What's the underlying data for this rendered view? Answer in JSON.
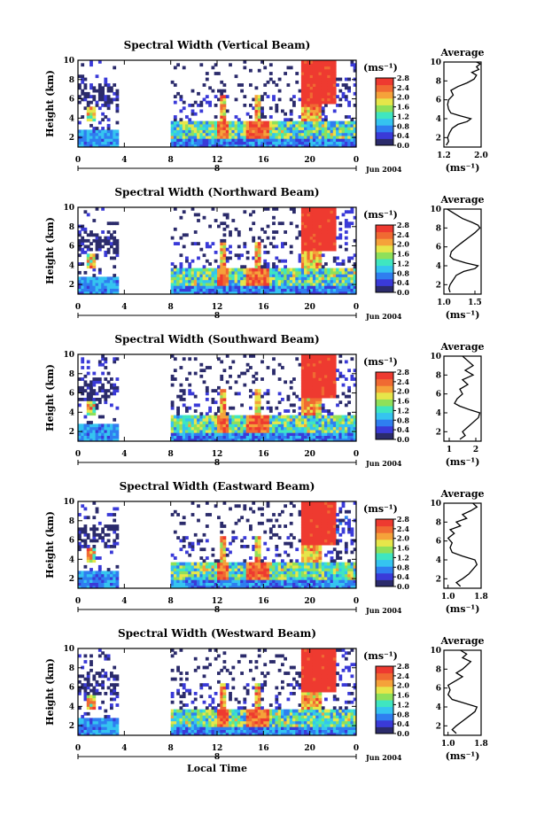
{
  "figure": {
    "shared_xlabel": "Local Time",
    "date_label": "Jun 2004",
    "day_marker": "8",
    "x_ticks": [
      "0",
      "4",
      "8",
      "12",
      "16",
      "20",
      "0"
    ],
    "y_ticks": [
      "2",
      "4",
      "6",
      "8",
      "10"
    ],
    "ylabel": "Height (km)",
    "colorbar_unit": "(ms⁻¹)",
    "colorbar_ticks": [
      "0.0",
      "0.4",
      "0.8",
      "1.2",
      "1.6",
      "2.0",
      "2.4",
      "2.8"
    ],
    "profile_title": "Average",
    "profile_unit": "(ms⁻¹)",
    "colors": {
      "colormap": [
        "#2b2b6b",
        "#3a3ad8",
        "#2f7ef0",
        "#35c4f0",
        "#3fe6c0",
        "#8fe05a",
        "#e6e64a",
        "#f5a23a",
        "#f06a32",
        "#ee3a30"
      ],
      "line": "#000000",
      "background": "#ffffff"
    }
  },
  "chart_data": [
    {
      "type": "heatmap",
      "title": "Spectral Width (Vertical Beam)",
      "xlabel": "",
      "ylabel": "Height (km)",
      "xlim": [
        0,
        24
      ],
      "ylim": [
        1,
        10
      ],
      "zlim": [
        0,
        2.8
      ],
      "profile": {
        "xlim": [
          1.2,
          2.0
        ],
        "xticks": [
          "1.2",
          "2.0"
        ],
        "points": [
          [
            1.25,
            1.2
          ],
          [
            1.3,
            1.6
          ],
          [
            1.28,
            2.0
          ],
          [
            1.32,
            2.5
          ],
          [
            1.38,
            3.0
          ],
          [
            1.5,
            3.4
          ],
          [
            1.7,
            3.7
          ],
          [
            1.78,
            4.0
          ],
          [
            1.55,
            4.3
          ],
          [
            1.35,
            4.6
          ],
          [
            1.3,
            5.0
          ],
          [
            1.28,
            5.5
          ],
          [
            1.3,
            6.0
          ],
          [
            1.4,
            6.5
          ],
          [
            1.35,
            7.0
          ],
          [
            1.5,
            7.4
          ],
          [
            1.7,
            7.8
          ],
          [
            1.85,
            8.2
          ],
          [
            1.9,
            8.6
          ],
          [
            1.8,
            8.9
          ],
          [
            1.95,
            9.2
          ],
          [
            1.9,
            9.5
          ],
          [
            1.98,
            9.8
          ],
          [
            1.9,
            10.0
          ]
        ]
      }
    },
    {
      "type": "heatmap",
      "title": "Spectral Width (Northward Beam)",
      "xlabel": "",
      "ylabel": "Height (km)",
      "xlim": [
        0,
        24
      ],
      "ylim": [
        1,
        10
      ],
      "zlim": [
        0,
        2.8
      ],
      "profile": {
        "xlim": [
          1.0,
          1.6
        ],
        "xticks": [
          "1.0",
          "1.5"
        ],
        "points": [
          [
            1.1,
            1.2
          ],
          [
            1.08,
            1.6
          ],
          [
            1.1,
            2.0
          ],
          [
            1.15,
            2.5
          ],
          [
            1.2,
            3.0
          ],
          [
            1.32,
            3.4
          ],
          [
            1.5,
            3.7
          ],
          [
            1.55,
            4.0
          ],
          [
            1.35,
            4.3
          ],
          [
            1.15,
            4.7
          ],
          [
            1.1,
            5.0
          ],
          [
            1.12,
            5.5
          ],
          [
            1.2,
            6.0
          ],
          [
            1.3,
            6.5
          ],
          [
            1.4,
            7.0
          ],
          [
            1.5,
            7.5
          ],
          [
            1.58,
            8.0
          ],
          [
            1.55,
            8.3
          ],
          [
            1.45,
            8.6
          ],
          [
            1.3,
            9.0
          ],
          [
            1.2,
            9.4
          ],
          [
            1.1,
            9.8
          ],
          [
            1.05,
            10.0
          ]
        ]
      }
    },
    {
      "type": "heatmap",
      "title": "Spectral Width (Southward Beam)",
      "xlabel": "",
      "ylabel": "Height (km)",
      "xlim": [
        0,
        24
      ],
      "ylim": [
        1,
        10
      ],
      "zlim": [
        0,
        2.8
      ],
      "profile": {
        "xlim": [
          0.8,
          2.2
        ],
        "xticks": [
          "1",
          "2"
        ],
        "points": [
          [
            1.4,
            1.2
          ],
          [
            1.6,
            1.6
          ],
          [
            1.5,
            2.0
          ],
          [
            1.7,
            2.5
          ],
          [
            1.9,
            3.0
          ],
          [
            2.1,
            3.5
          ],
          [
            2.15,
            4.0
          ],
          [
            1.8,
            4.3
          ],
          [
            1.4,
            4.7
          ],
          [
            1.2,
            5.0
          ],
          [
            1.3,
            5.5
          ],
          [
            1.5,
            6.0
          ],
          [
            1.4,
            6.5
          ],
          [
            1.7,
            7.0
          ],
          [
            1.5,
            7.5
          ],
          [
            1.9,
            8.0
          ],
          [
            1.6,
            8.5
          ],
          [
            1.9,
            9.0
          ],
          [
            1.7,
            9.5
          ],
          [
            1.5,
            10.0
          ]
        ]
      }
    },
    {
      "type": "heatmap",
      "title": "Spectral Width (Eastward Beam)",
      "xlabel": "",
      "ylabel": "Height (km)",
      "xlim": [
        0,
        24
      ],
      "ylim": [
        1,
        10
      ],
      "zlim": [
        0,
        2.8
      ],
      "profile": {
        "xlim": [
          0.9,
          1.8
        ],
        "xticks": [
          "1.0",
          "1.8"
        ],
        "points": [
          [
            1.3,
            1.2
          ],
          [
            1.2,
            1.6
          ],
          [
            1.35,
            2.0
          ],
          [
            1.5,
            2.5
          ],
          [
            1.6,
            3.0
          ],
          [
            1.7,
            3.5
          ],
          [
            1.65,
            4.0
          ],
          [
            1.35,
            4.4
          ],
          [
            1.1,
            4.8
          ],
          [
            1.05,
            5.3
          ],
          [
            1.1,
            5.8
          ],
          [
            1.0,
            6.3
          ],
          [
            1.15,
            6.8
          ],
          [
            1.05,
            7.2
          ],
          [
            1.3,
            7.6
          ],
          [
            1.2,
            8.0
          ],
          [
            1.45,
            8.4
          ],
          [
            1.35,
            8.8
          ],
          [
            1.55,
            9.2
          ],
          [
            1.7,
            9.6
          ],
          [
            1.6,
            10.0
          ]
        ]
      }
    },
    {
      "type": "heatmap",
      "title": "Spectral Width (Westward Beam)",
      "xlabel": "Local Time",
      "ylabel": "Height (km)",
      "xlim": [
        0,
        24
      ],
      "ylim": [
        1,
        10
      ],
      "zlim": [
        0,
        2.8
      ],
      "profile": {
        "xlim": [
          0.9,
          1.8
        ],
        "xticks": [
          "1.0",
          "1.8"
        ],
        "points": [
          [
            1.2,
            1.2
          ],
          [
            1.1,
            1.6
          ],
          [
            1.2,
            2.0
          ],
          [
            1.35,
            2.5
          ],
          [
            1.5,
            3.0
          ],
          [
            1.65,
            3.5
          ],
          [
            1.7,
            4.0
          ],
          [
            1.4,
            4.4
          ],
          [
            1.1,
            4.8
          ],
          [
            1.0,
            5.3
          ],
          [
            1.05,
            5.8
          ],
          [
            1.0,
            6.3
          ],
          [
            1.2,
            6.8
          ],
          [
            1.35,
            7.2
          ],
          [
            1.2,
            7.6
          ],
          [
            1.35,
            8.0
          ],
          [
            1.45,
            8.4
          ],
          [
            1.55,
            8.8
          ],
          [
            1.35,
            9.2
          ],
          [
            1.45,
            9.6
          ],
          [
            1.3,
            10.0
          ]
        ]
      }
    }
  ]
}
